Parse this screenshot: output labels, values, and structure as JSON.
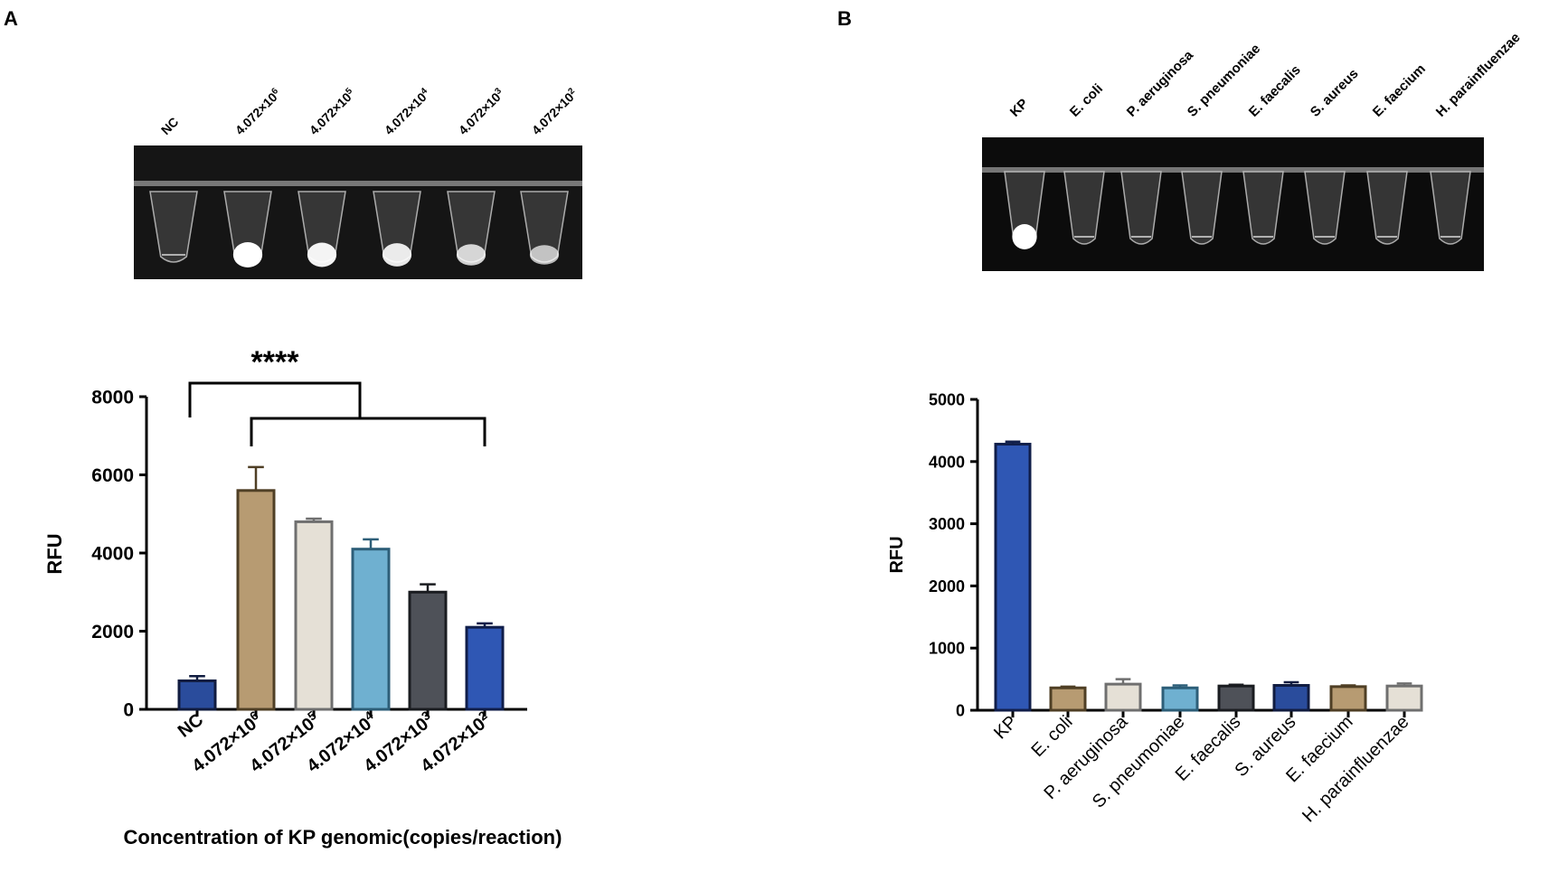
{
  "panels": [
    {
      "label": "A"
    },
    {
      "label": "B"
    }
  ],
  "gel_images": [
    {
      "lane_labels": [
        "NC",
        "4.072×10",
        "4.072×10",
        "4.072×10",
        "4.072×10",
        "4.072×10"
      ],
      "lane_superscripts": [
        "",
        "6",
        "5",
        "4",
        "3",
        "2"
      ],
      "lane_glow": [
        0.05,
        1.0,
        0.95,
        0.9,
        0.8,
        0.7
      ]
    },
    {
      "lane_labels": [
        "KP",
        "E. coli",
        "P. aeruginosa",
        "S. pneumoniae",
        "E. faecalis",
        "S. aureus",
        "E. faecium",
        "H. parainfluenzae"
      ],
      "lane_glow": [
        1.0,
        0.05,
        0.05,
        0.05,
        0.05,
        0.05,
        0.05,
        0.05
      ]
    }
  ],
  "chart_data": [
    {
      "type": "bar",
      "categories": [
        "NC",
        "4.072×10",
        "4.072×10",
        "4.072×10",
        "4.072×10",
        "4.072×10"
      ],
      "category_superscripts": [
        "",
        "6",
        "5",
        "4",
        "3",
        "2"
      ],
      "values": [
        730,
        5600,
        4800,
        4100,
        3000,
        2100
      ],
      "errors": [
        120,
        600,
        80,
        250,
        200,
        100
      ],
      "ylabel": "RFU",
      "xlabel": "Concentration of KP genomic(copies/reaction)",
      "ylim": [
        0,
        8000
      ],
      "yticks": [
        0,
        2000,
        4000,
        6000,
        8000
      ],
      "significance": "****",
      "colors": [
        "#2a4c9c",
        "#b79b72",
        "#e5e0d6",
        "#6fb0d0",
        "#4e5158",
        "#2f57b4"
      ],
      "edge_colors": [
        "#111c40",
        "#4f3f25",
        "#6f6f6f",
        "#2d5e78",
        "#1a1c20",
        "#101e4a"
      ],
      "grid": false,
      "legend": "none"
    },
    {
      "type": "bar",
      "categories": [
        "KP",
        "E. coli",
        "P. aeruginosa",
        "S. pneumoniae",
        "E. faecalis",
        "S. aureus",
        "E. faecium",
        "H. parainfluenzae"
      ],
      "values": [
        4280,
        360,
        420,
        360,
        390,
        400,
        380,
        390
      ],
      "errors": [
        40,
        20,
        80,
        40,
        20,
        50,
        20,
        40
      ],
      "ylabel": "RFU",
      "xlabel": "",
      "ylim": [
        0,
        5000
      ],
      "yticks": [
        0,
        1000,
        2000,
        3000,
        4000,
        5000
      ],
      "colors": [
        "#2f57b4",
        "#b79b72",
        "#e5e0d6",
        "#6fb0d0",
        "#4e5158",
        "#2a4c9c",
        "#b79b72",
        "#e5e0d6"
      ],
      "edge_colors": [
        "#101e4a",
        "#4f3f25",
        "#6f6f6f",
        "#2d5e78",
        "#1a1c20",
        "#111c40",
        "#4f3f25",
        "#6f6f6f"
      ],
      "grid": false,
      "legend": "none"
    }
  ]
}
